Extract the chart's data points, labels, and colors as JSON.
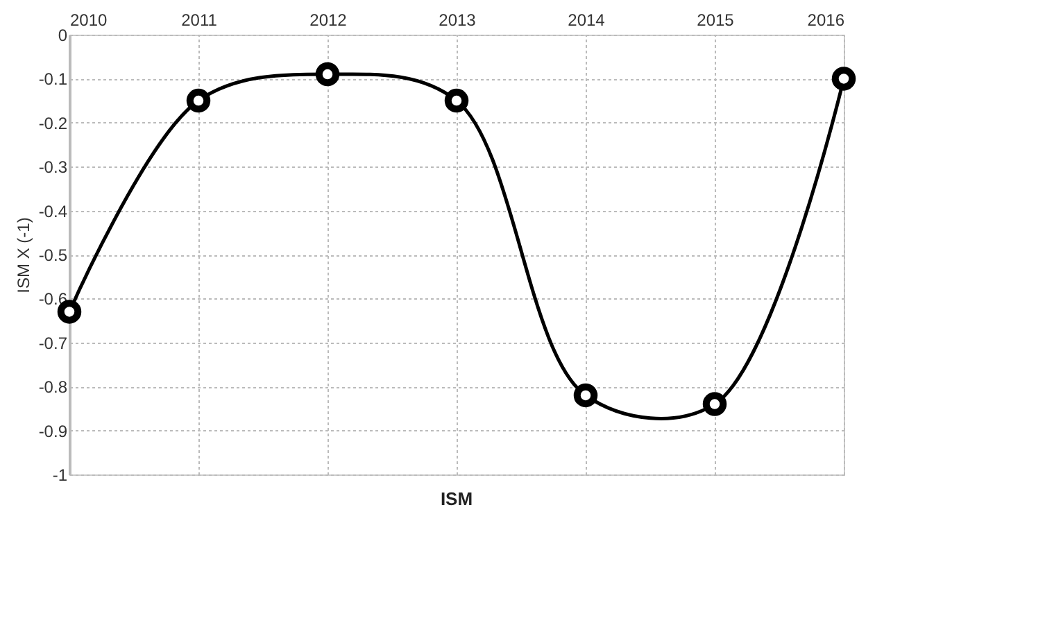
{
  "chart_data": {
    "type": "line",
    "xlabel": "ISM",
    "ylabel": "ISM X (-1)",
    "x": [
      2010,
      2011,
      2012,
      2013,
      2014,
      2015,
      2016
    ],
    "series": [
      {
        "color": "#000000",
        "values": [
          -0.63,
          -0.15,
          -0.09,
          -0.15,
          -0.82,
          -0.84,
          -0.1
        ]
      }
    ],
    "xlim": [
      2010,
      2016
    ],
    "xticks": [
      2010,
      2011,
      2012,
      2013,
      2014,
      2015,
      2016
    ],
    "ylim": [
      -1,
      0
    ],
    "yticks": [
      {
        "value": 0,
        "label": "0"
      },
      {
        "value": -0.1,
        "label": "-0.1"
      },
      {
        "value": -0.2,
        "label": "-0.2"
      },
      {
        "value": -0.3,
        "label": "-0.3"
      },
      {
        "value": -0.4,
        "label": "-0.4"
      },
      {
        "value": -0.5,
        "label": "-0.5"
      },
      {
        "value": -0.6,
        "label": "-0.6"
      },
      {
        "value": -0.7,
        "label": "-0.7"
      },
      {
        "value": -0.8,
        "label": "-0.8"
      },
      {
        "value": -0.9,
        "label": "-0.9"
      },
      {
        "value": -1,
        "label": "-1"
      }
    ],
    "grid": true,
    "marker": "circle",
    "line_style": "solid",
    "legend": false
  }
}
